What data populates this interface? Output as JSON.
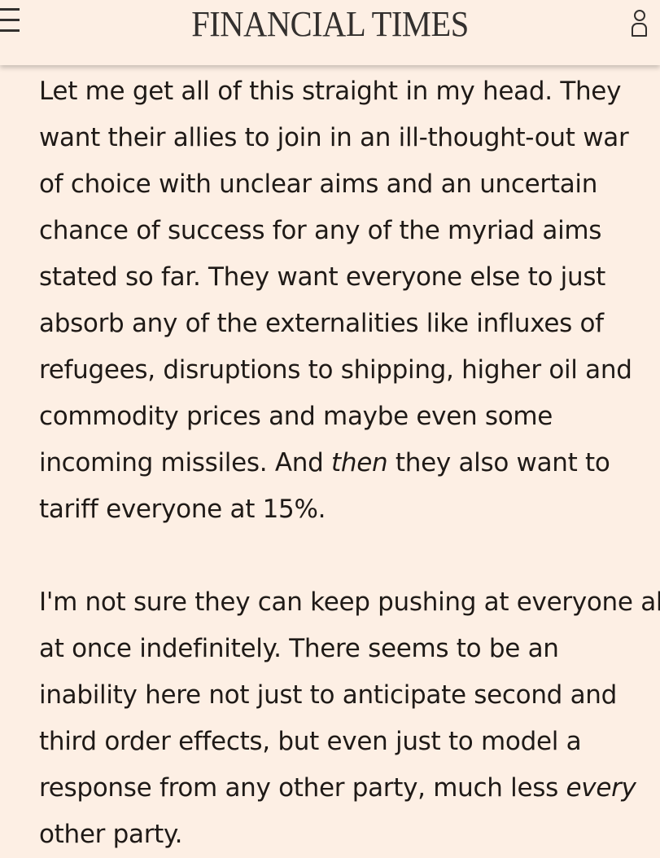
{
  "header": {
    "logo": "FINANCIAL TIMES",
    "menu_icon": "hamburger-menu-icon",
    "user_icon": "user-account-icon"
  },
  "colors": {
    "background": "#fdefe4",
    "text": "#1f1a17",
    "header_ink": "#33302e"
  },
  "article": {
    "paragraphs": [
      {
        "lines": [
          [
            {
              "text": "Let me get all of this straight in my head. They"
            }
          ],
          [
            {
              "text": "want their allies to join in an ill-thought-out war"
            }
          ],
          [
            {
              "text": "of choice with unclear aims and an uncertain"
            }
          ],
          [
            {
              "text": "chance of success for any of the myriad aims"
            }
          ],
          [
            {
              "text": "stated so far. They want everyone else to just"
            }
          ],
          [
            {
              "text": "absorb any of the externalities like influxes of"
            }
          ],
          [
            {
              "text": "refugees, disruptions to shipping, higher oil and"
            }
          ],
          [
            {
              "text": "commodity prices and maybe even some"
            }
          ],
          [
            {
              "text": "incoming missiles. And "
            },
            {
              "text": "then",
              "italic": true
            },
            {
              "text": " they also want to"
            }
          ],
          [
            {
              "text": "tariff everyone at 15%."
            }
          ]
        ]
      },
      {
        "lines": [
          [
            {
              "text": "I'm not sure they can keep pushing at everyone all"
            }
          ],
          [
            {
              "text": "at once indefinitely. There seems to be an"
            }
          ],
          [
            {
              "text": "inability here not just to anticipate second and"
            }
          ],
          [
            {
              "text": "third order effects, but even just to model a"
            }
          ],
          [
            {
              "text": "response from any other party, much less "
            },
            {
              "text": "every",
              "italic": true
            }
          ],
          [
            {
              "text": "other party."
            }
          ]
        ]
      }
    ]
  }
}
